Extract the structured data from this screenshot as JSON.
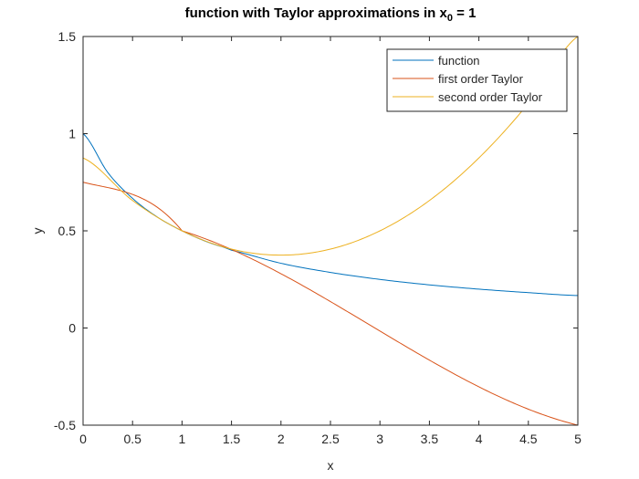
{
  "chart_data": {
    "type": "line",
    "title": {
      "prefix": "function with Taylor approximations in x",
      "subscript": "0",
      "suffix": " = 1"
    },
    "xlabel": "x",
    "ylabel": "y",
    "xlim": [
      0,
      5
    ],
    "ylim": [
      -0.5,
      1.5
    ],
    "xticks": [
      0,
      0.5,
      1,
      1.5,
      2,
      2.5,
      3,
      3.5,
      4,
      4.5,
      5
    ],
    "yticks": [
      -0.5,
      0,
      0.5,
      1,
      1.5
    ],
    "grid": false,
    "legend_position": "top-right",
    "series": [
      {
        "name": "function",
        "color": "#0072BD",
        "x": [
          0,
          0.25,
          0.5,
          0.75,
          1,
          1.25,
          1.5,
          2,
          2.5,
          3,
          3.5,
          4,
          4.5,
          5
        ],
        "y": [
          1.0,
          0.8,
          0.667,
          0.571,
          0.5,
          0.444,
          0.4,
          0.333,
          0.286,
          0.25,
          0.222,
          0.2,
          0.182,
          0.167
        ]
      },
      {
        "name": "first order Taylor",
        "color": "#D95319",
        "x": [
          0,
          1,
          5
        ],
        "y": [
          0.75,
          0.5,
          -0.5
        ]
      },
      {
        "name": "second order Taylor",
        "color": "#EDB120",
        "x": [
          0,
          0.5,
          1,
          1.5,
          2,
          2.5,
          3,
          3.5,
          4,
          4.5,
          5
        ],
        "y": [
          0.875,
          0.656,
          0.5,
          0.406,
          0.375,
          0.406,
          0.5,
          0.656,
          0.875,
          1.156,
          1.5
        ]
      }
    ]
  }
}
